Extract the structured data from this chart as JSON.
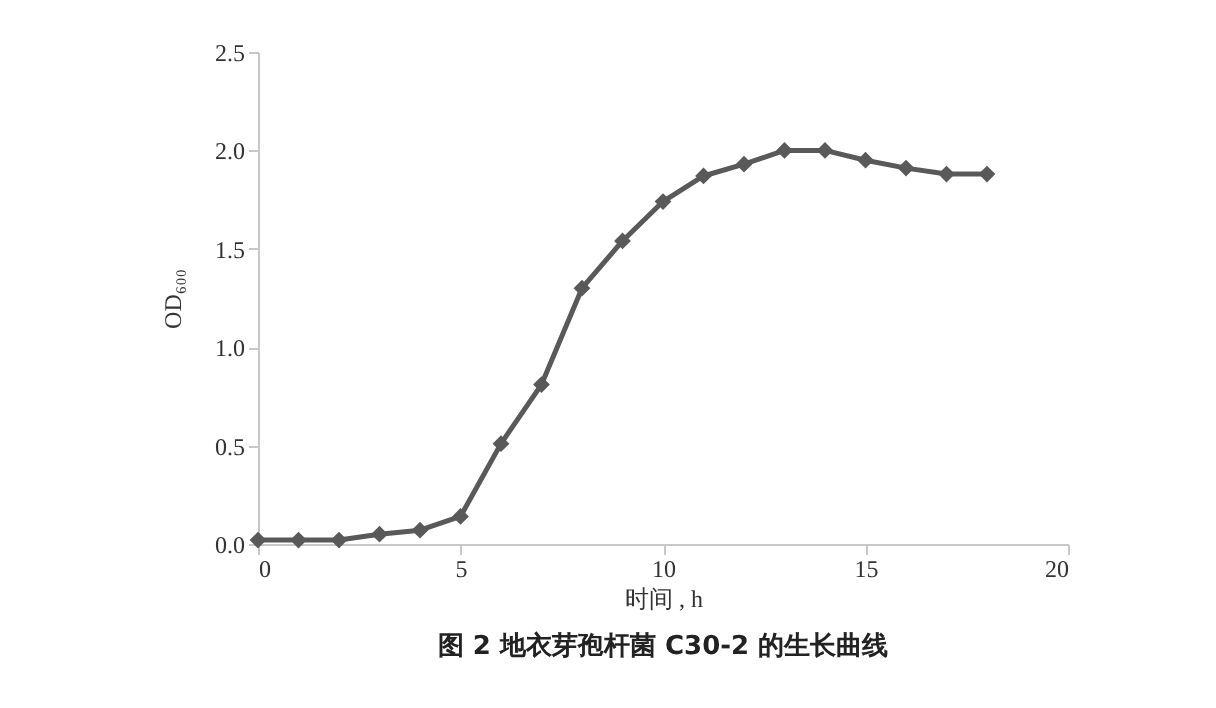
{
  "chart_data": {
    "type": "line",
    "title": "图 2  地衣芽孢杆菌 C30-2 的生长曲线",
    "xlabel": "时间 , h",
    "ylabel": "OD₆₀₀",
    "x": [
      0,
      1,
      2,
      3,
      4,
      5,
      6,
      7,
      8,
      9,
      10,
      11,
      12,
      13,
      14,
      15,
      16,
      17,
      18
    ],
    "series": [
      {
        "color": "#595959",
        "values": [
          0.02,
          0.02,
          0.02,
          0.05,
          0.07,
          0.14,
          0.51,
          0.81,
          1.3,
          1.54,
          1.74,
          1.87,
          1.93,
          2.0,
          2.0,
          1.95,
          1.91,
          1.88,
          1.88
        ]
      }
    ],
    "xlim": [
      0,
      20
    ],
    "xticks": [
      0,
      5,
      10,
      15,
      20
    ],
    "ylim": [
      0,
      2.5
    ],
    "yticks": [
      {
        "value": 0,
        "label": "0.0"
      },
      {
        "value": 0.5,
        "label": "0.5"
      },
      {
        "value": 1,
        "label": "1.0"
      },
      {
        "value": 1.5,
        "label": "1.5"
      },
      {
        "value": 2,
        "label": "2.0"
      },
      {
        "value": 2.5,
        "label": "2.5"
      }
    ],
    "marker": "diamond",
    "line_style": "solid",
    "grid": false,
    "legend": false
  }
}
